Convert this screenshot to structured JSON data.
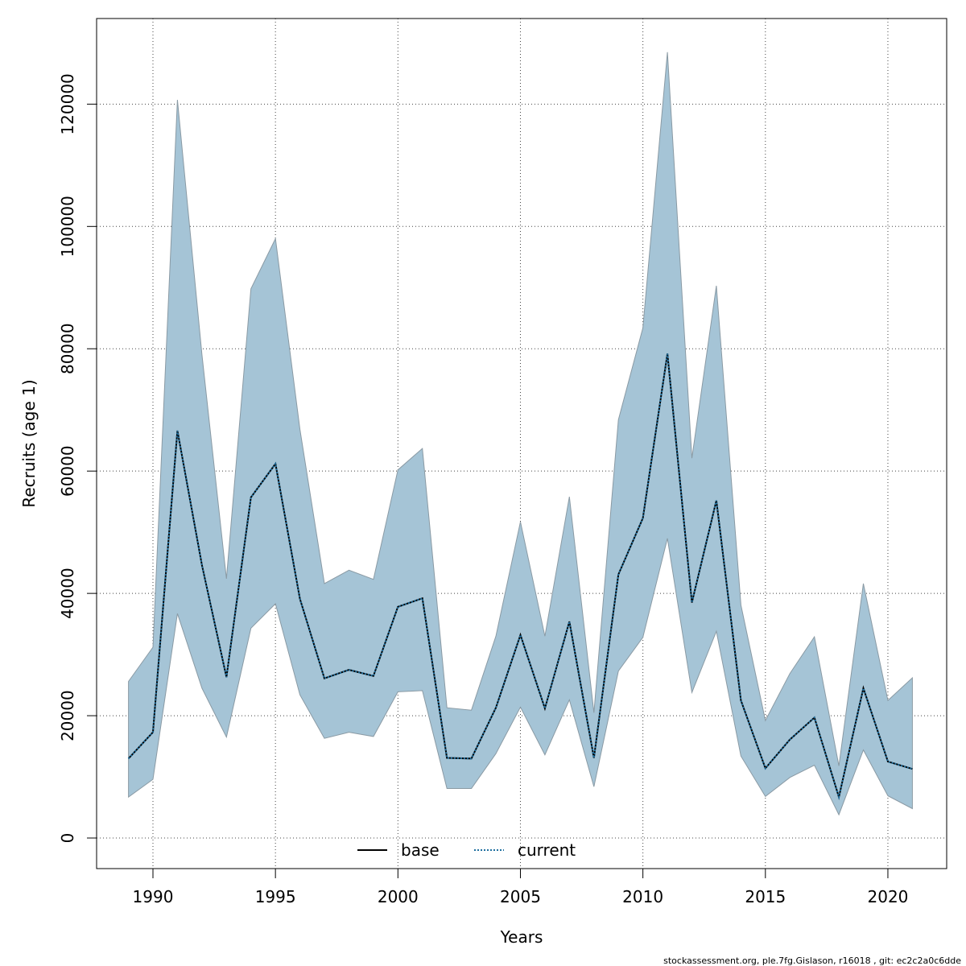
{
  "chart_data": {
    "type": "line",
    "xlabel": "Years",
    "ylabel": "Recruits (age 1)",
    "xlim": [
      1987.7,
      2022.4
    ],
    "ylim": [
      -5000,
      134000
    ],
    "x_ticks": [
      1990,
      1995,
      2000,
      2005,
      2010,
      2015,
      2020
    ],
    "y_ticks": [
      0,
      20000,
      40000,
      60000,
      80000,
      100000,
      120000
    ],
    "grid": true,
    "legend": {
      "placement": "bottom",
      "entries": [
        "base",
        "current"
      ]
    },
    "x": [
      1989,
      1990,
      1991,
      1992,
      1993,
      1994,
      1995,
      1996,
      1997,
      1998,
      1999,
      2000,
      2001,
      2002,
      2003,
      2004,
      2005,
      2006,
      2007,
      2008,
      2009,
      2010,
      2011,
      2012,
      2013,
      2014,
      2015,
      2016,
      2017,
      2018,
      2019,
      2020,
      2021
    ],
    "band": {
      "lower": [
        6700,
        9600,
        36700,
        24500,
        16500,
        34300,
        38300,
        23400,
        16300,
        17300,
        16600,
        23900,
        24100,
        8100,
        8100,
        13800,
        21400,
        13600,
        22600,
        8400,
        27300,
        32800,
        49000,
        23800,
        33800,
        13400,
        6800,
        9900,
        11900,
        3800,
        14400,
        6900,
        4800
      ],
      "upper": [
        25600,
        31200,
        120700,
        79000,
        42400,
        89800,
        98000,
        66800,
        41600,
        43800,
        42300,
        60200,
        63700,
        21300,
        20900,
        33000,
        51700,
        33000,
        55800,
        20500,
        68400,
        83400,
        128500,
        62100,
        90300,
        38100,
        19200,
        26900,
        32900,
        11800,
        41600,
        22500,
        26200
      ],
      "color": "#a5c4d6"
    },
    "series": [
      {
        "name": "base",
        "style": "solid",
        "color": "#000000",
        "values": [
          13000,
          17300,
          66600,
          44600,
          26300,
          55700,
          61200,
          39100,
          26100,
          27500,
          26500,
          37800,
          39200,
          13100,
          13000,
          21300,
          33200,
          21200,
          35400,
          13100,
          43100,
          52300,
          79200,
          38500,
          55200,
          22500,
          11400,
          16100,
          19700,
          6700,
          24500,
          12500,
          11300
        ]
      },
      {
        "name": "current",
        "style": "dotted",
        "color": "#1f6f9f",
        "values": [
          13000,
          17300,
          66600,
          44600,
          26300,
          55700,
          61200,
          39100,
          26100,
          27500,
          26500,
          37800,
          39200,
          13100,
          13000,
          21300,
          33200,
          21200,
          35400,
          13100,
          43100,
          52300,
          79200,
          38500,
          55200,
          22500,
          11400,
          16100,
          19700,
          6700,
          24500,
          12500,
          11300
        ]
      }
    ]
  },
  "footer": "stockassessment.org, ple.7fg.Gislason, r16018 , git: ec2c2a0c6dde"
}
